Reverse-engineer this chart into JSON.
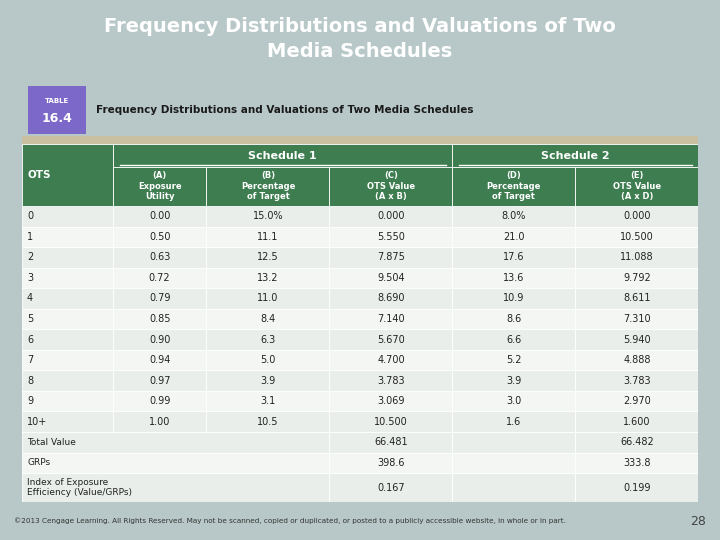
{
  "title": "Frequency Distributions and Valuations of Two\nMedia Schedules",
  "table_title": "Frequency Distributions and Valuations of Two Media Schedules",
  "rows": [
    [
      "0",
      "0.00",
      "15.0%",
      "0.000",
      "8.0%",
      "0.000"
    ],
    [
      "1",
      "0.50",
      "11.1",
      "5.550",
      "21.0",
      "10.500"
    ],
    [
      "2",
      "0.63",
      "12.5",
      "7.875",
      "17.6",
      "11.088"
    ],
    [
      "3",
      "0.72",
      "13.2",
      "9.504",
      "13.6",
      "9.792"
    ],
    [
      "4",
      "0.79",
      "11.0",
      "8.690",
      "10.9",
      "8.611"
    ],
    [
      "5",
      "0.85",
      "8.4",
      "7.140",
      "8.6",
      "7.310"
    ],
    [
      "6",
      "0.90",
      "6.3",
      "5.670",
      "6.6",
      "5.940"
    ],
    [
      "7",
      "0.94",
      "5.0",
      "4.700",
      "5.2",
      "4.888"
    ],
    [
      "8",
      "0.97",
      "3.9",
      "3.783",
      "3.9",
      "3.783"
    ],
    [
      "9",
      "0.99",
      "3.1",
      "3.069",
      "3.0",
      "2.970"
    ],
    [
      "10+",
      "1.00",
      "10.5",
      "10.500",
      "1.6",
      "1.600"
    ]
  ],
  "summary_rows": [
    [
      "Total Value",
      "",
      "",
      "66.481",
      "",
      "66.482"
    ],
    [
      "GRPs",
      "",
      "",
      "398.6",
      "",
      "333.8"
    ],
    [
      "Index of Exposure\nEfficiency (Value/GRPs)",
      "",
      "",
      "0.167",
      "",
      "0.199"
    ]
  ],
  "footer": "©2013 Cengage Learning. All Rights Reserved. May not be scanned, copied or duplicated, or posted to a publicly accessible website, in whole or in part.",
  "page_num": "28",
  "header_bg": "#3d7d4f",
  "header_text_color": "#ffffff",
  "table_bg_even": "#eaeeea",
  "table_bg_odd": "#f4f6f4",
  "title_bg": "#5a7a9a",
  "title_text_color": "#ffffff",
  "table_label_bg": "#7b68c8",
  "outer_bg": "#b8c8c8",
  "white_box_bg": "#ffffff",
  "table_header_strip": "#c8c0a0"
}
